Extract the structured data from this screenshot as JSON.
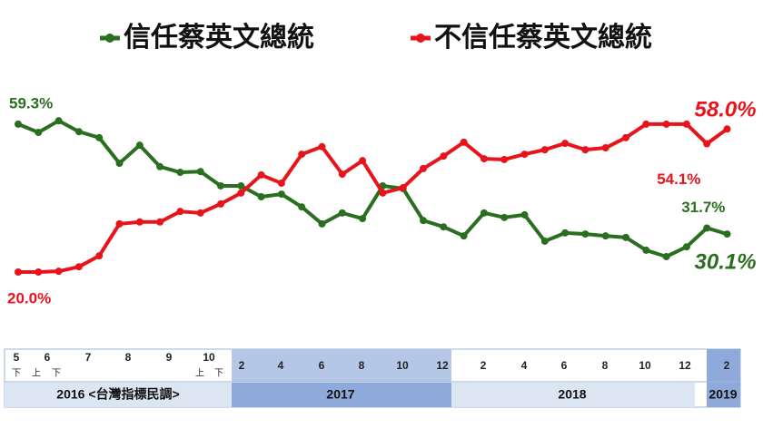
{
  "chart_data": {
    "type": "line",
    "categories": [
      null,
      null,
      null,
      null,
      null,
      null,
      null,
      null,
      null,
      null,
      null,
      null,
      null,
      null,
      null,
      null,
      null,
      null,
      null,
      null,
      null,
      null,
      null,
      null,
      null,
      null,
      null,
      null,
      null,
      null,
      null,
      null,
      null,
      null,
      null,
      null
    ],
    "series": [
      {
        "name": "信任蔡英文總統",
        "color": "#2a6e1f",
        "values": [
          59.3,
          57.1,
          60.2,
          57.3,
          55.7,
          48.9,
          53.7,
          48.0,
          46.5,
          46.7,
          42.9,
          42.9,
          40.0,
          40.7,
          37.3,
          32.8,
          35.7,
          34.2,
          42.9,
          42.2,
          33.7,
          32.0,
          29.6,
          35.7,
          34.5,
          35.2,
          28.2,
          30.4,
          30.1,
          29.6,
          29.2,
          25.8,
          24.1,
          26.7,
          31.7,
          30.1
        ],
        "value_labels": [
          "59.3%",
          null,
          null,
          null,
          null,
          null,
          null,
          null,
          null,
          null,
          null,
          null,
          null,
          null,
          null,
          null,
          null,
          null,
          null,
          null,
          null,
          null,
          null,
          null,
          null,
          null,
          null,
          null,
          null,
          null,
          null,
          null,
          null,
          null,
          "31.7%",
          "30.1%"
        ]
      },
      {
        "name": "不信任蔡英文總統",
        "color": "#e8141c",
        "values": [
          20.0,
          20.0,
          20.2,
          21.4,
          24.3,
          32.8,
          33.3,
          33.3,
          36.1,
          35.7,
          38.1,
          41.0,
          45.8,
          43.6,
          51.3,
          53.3,
          46.0,
          49.6,
          41.0,
          42.4,
          47.5,
          50.8,
          54.5,
          50.1,
          49.9,
          51.3,
          52.5,
          54.2,
          52.5,
          53.0,
          55.7,
          59.3,
          59.3,
          59.3,
          54.1,
          58.0
        ],
        "value_labels": [
          "20.0%",
          null,
          null,
          null,
          null,
          null,
          null,
          null,
          null,
          null,
          null,
          null,
          null,
          null,
          null,
          null,
          null,
          null,
          null,
          null,
          null,
          null,
          null,
          null,
          null,
          null,
          null,
          null,
          null,
          null,
          null,
          null,
          null,
          null,
          "54.1%",
          "58.0%"
        ]
      }
    ],
    "timeline": {
      "months": [
        "5",
        "6",
        "7",
        "8",
        "9",
        "10",
        "2",
        "4",
        "6",
        "8",
        "10",
        "12",
        "2",
        "4",
        "6",
        "8",
        "10",
        "12",
        "2"
      ],
      "halves": [
        "下",
        "上",
        "下",
        "上",
        "下"
      ],
      "years": [
        "2016 <台灣指標民調>",
        "2017",
        "2018",
        "2019"
      ]
    }
  }
}
